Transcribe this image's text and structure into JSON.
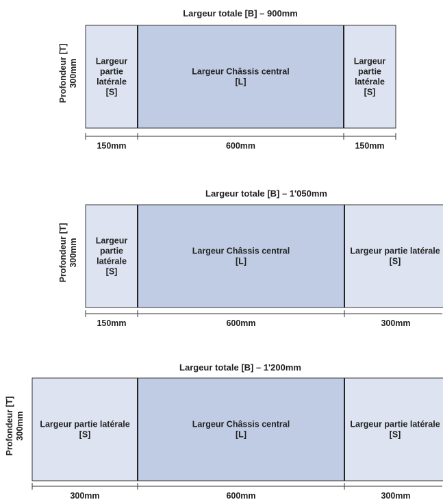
{
  "diagrams": [
    {
      "title": "Largeur totale [B] – 900mm",
      "depth": [
        "Profondeur [T]",
        "300mm"
      ],
      "left": {
        "lines": [
          "Largeur",
          "partie",
          "latérale",
          "[S]"
        ],
        "dimension": "150mm"
      },
      "center": {
        "lines": [
          "Largeur Châssis central",
          "[L]"
        ],
        "dimension": "600mm"
      },
      "right": {
        "lines": [
          "Largeur",
          "partie",
          "latérale",
          "[S]"
        ],
        "dimension": "150mm"
      }
    },
    {
      "title": "Largeur totale [B] – 1'050mm",
      "depth": [
        "Profondeur [T]",
        "300mm"
      ],
      "left": {
        "lines": [
          "Largeur",
          "partie",
          "latérale",
          "[S]"
        ],
        "dimension": "150mm"
      },
      "center": {
        "lines": [
          "Largeur Châssis central",
          "[L]"
        ],
        "dimension": "600mm"
      },
      "right": {
        "lines": [
          "Largeur partie latérale",
          "[S]"
        ],
        "dimension": "300mm"
      }
    },
    {
      "title": "Largeur totale [B] – 1'200mm",
      "depth": [
        "Profondeur [T]",
        "300mm"
      ],
      "left": {
        "lines": [
          "Largeur partie latérale",
          "[S]"
        ],
        "dimension": "300mm"
      },
      "center": {
        "lines": [
          "Largeur Châssis central",
          "[L]"
        ],
        "dimension": "600mm"
      },
      "right": {
        "lines": [
          "Largeur partie latérale",
          "[S]"
        ],
        "dimension": "300mm"
      }
    }
  ],
  "colors": {
    "side": "#dde3f1",
    "center": "#c0cce4",
    "stroke": "#333333"
  }
}
